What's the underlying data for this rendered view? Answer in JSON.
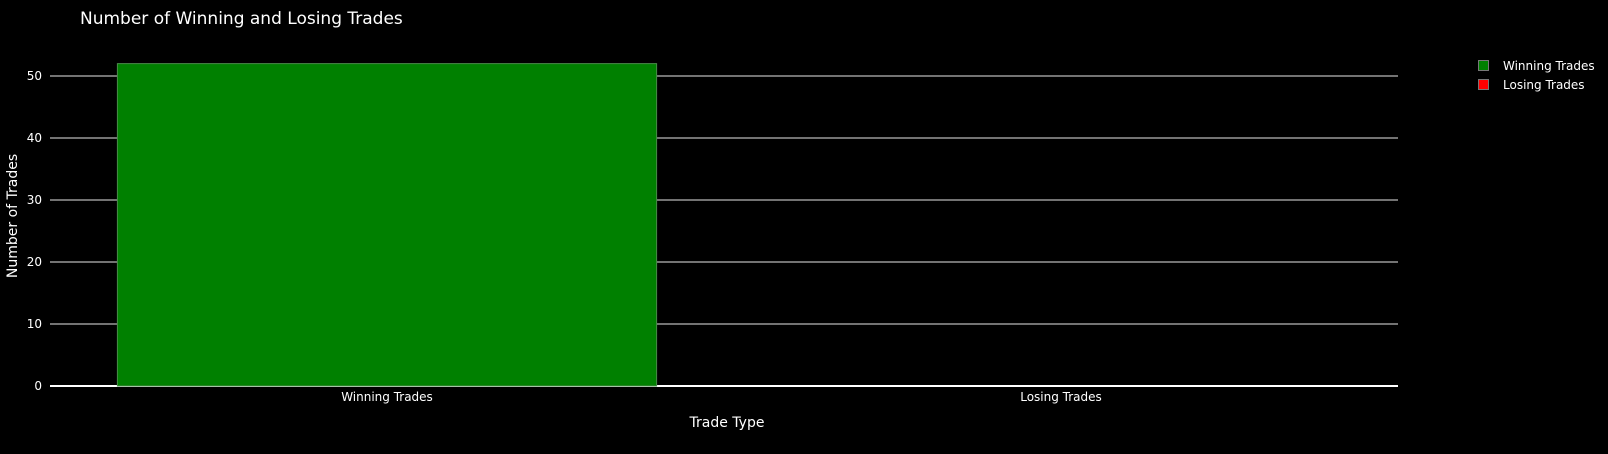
{
  "chart_data": {
    "type": "bar",
    "title": "Number of Winning and Losing Trades",
    "xlabel": "Trade Type",
    "ylabel": "Number of Trades",
    "categories": [
      "Winning Trades",
      "Losing Trades"
    ],
    "series": [
      {
        "name": "Winning Trades",
        "color": "#008000",
        "values": [
          52,
          0
        ]
      },
      {
        "name": "Losing Trades",
        "color": "#ff0000",
        "values": [
          0,
          0
        ]
      }
    ],
    "ylim": [
      0,
      55
    ],
    "yticks": [
      0,
      10,
      20,
      30,
      40,
      50
    ],
    "grid": true,
    "legend_position": "top-right",
    "colors": {
      "background": "#000000",
      "grid": "#e6e6e6",
      "text": "#ffffff"
    }
  }
}
